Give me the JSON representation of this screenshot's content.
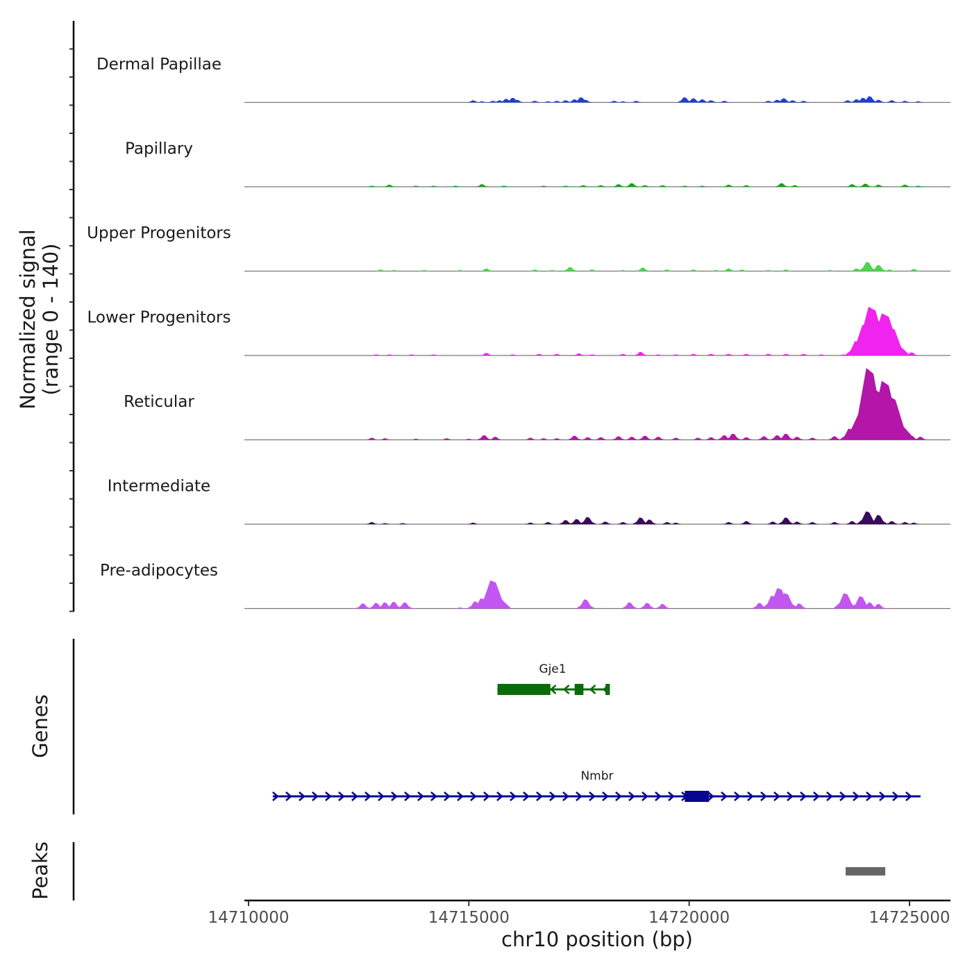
{
  "chart_data": {
    "type": "area",
    "title": "",
    "chromosome": "chr10",
    "xlabel": "chr10 position (bp)",
    "xlim": [
      14710000,
      14726000
    ],
    "x_ticks": [
      {
        "value": 14710000,
        "label": "14710000"
      },
      {
        "value": 14715000,
        "label": "14715000"
      },
      {
        "value": 14720000,
        "label": "14720000"
      },
      {
        "value": 14725000,
        "label": "14725000"
      }
    ],
    "coverage": {
      "ylabel_line1": "Normalized signal",
      "ylabel_line2": "(range 0 - 140)",
      "ylim": [
        0,
        140
      ],
      "tracks": [
        {
          "name": "Dermal Papillae",
          "color": "#1f3fd0",
          "peaks": [
            [
              14715100,
              4
            ],
            [
              14715300,
              2
            ],
            [
              14715550,
              3
            ],
            [
              14715700,
              4
            ],
            [
              14715850,
              7
            ],
            [
              14716000,
              9
            ],
            [
              14716100,
              5
            ],
            [
              14716500,
              3
            ],
            [
              14716800,
              2
            ],
            [
              14717000,
              3
            ],
            [
              14717200,
              4
            ],
            [
              14717400,
              6
            ],
            [
              14717550,
              10
            ],
            [
              14717650,
              5
            ],
            [
              14718300,
              3
            ],
            [
              14718500,
              2
            ],
            [
              14718800,
              3
            ],
            [
              14719900,
              10
            ],
            [
              14720100,
              8
            ],
            [
              14720300,
              6
            ],
            [
              14720500,
              4
            ],
            [
              14720800,
              3
            ],
            [
              14721800,
              3
            ],
            [
              14722000,
              5
            ],
            [
              14722150,
              8
            ],
            [
              14722350,
              4
            ],
            [
              14722600,
              3
            ],
            [
              14723600,
              4
            ],
            [
              14723800,
              6
            ],
            [
              14723950,
              9
            ],
            [
              14724100,
              12
            ],
            [
              14724300,
              5
            ],
            [
              14724600,
              4
            ],
            [
              14724900,
              3
            ],
            [
              14725200,
              2
            ]
          ]
        },
        {
          "name": "Papillary",
          "color": "#17a317",
          "peaks": [
            [
              14712800,
              2
            ],
            [
              14713200,
              4
            ],
            [
              14713800,
              2
            ],
            [
              14714200,
              2
            ],
            [
              14714700,
              2
            ],
            [
              14715300,
              5
            ],
            [
              14715800,
              2
            ],
            [
              14716700,
              2
            ],
            [
              14717200,
              2
            ],
            [
              14717600,
              3
            ],
            [
              14718000,
              3
            ],
            [
              14718400,
              5
            ],
            [
              14718700,
              7
            ],
            [
              14719000,
              3
            ],
            [
              14719400,
              3
            ],
            [
              14719900,
              2
            ],
            [
              14720300,
              2
            ],
            [
              14720900,
              4
            ],
            [
              14721300,
              3
            ],
            [
              14722100,
              7
            ],
            [
              14722400,
              3
            ],
            [
              14723700,
              5
            ],
            [
              14724000,
              6
            ],
            [
              14724300,
              4
            ],
            [
              14724900,
              4
            ],
            [
              14725200,
              2
            ]
          ]
        },
        {
          "name": "Upper Progenitors",
          "color": "#4fd44f",
          "peaks": [
            [
              14713000,
              3
            ],
            [
              14713300,
              2
            ],
            [
              14714000,
              2
            ],
            [
              14714800,
              2
            ],
            [
              14715400,
              5
            ],
            [
              14716500,
              3
            ],
            [
              14716900,
              2
            ],
            [
              14717300,
              8
            ],
            [
              14717800,
              3
            ],
            [
              14718500,
              2
            ],
            [
              14718950,
              7
            ],
            [
              14719500,
              3
            ],
            [
              14720100,
              3
            ],
            [
              14720600,
              2
            ],
            [
              14720900,
              5
            ],
            [
              14721200,
              3
            ],
            [
              14721800,
              2
            ],
            [
              14722200,
              3
            ],
            [
              14723200,
              2
            ],
            [
              14723800,
              5
            ],
            [
              14724050,
              18
            ],
            [
              14724300,
              12
            ],
            [
              14724550,
              3
            ],
            [
              14725100,
              4
            ]
          ]
        },
        {
          "name": "Lower Progenitors",
          "color": "#f024ee",
          "peaks": [
            [
              14712900,
              2
            ],
            [
              14713200,
              2
            ],
            [
              14713700,
              2
            ],
            [
              14714200,
              2
            ],
            [
              14715400,
              5
            ],
            [
              14716000,
              2
            ],
            [
              14716600,
              3
            ],
            [
              14717000,
              3
            ],
            [
              14717500,
              4
            ],
            [
              14717800,
              2
            ],
            [
              14718500,
              3
            ],
            [
              14718900,
              7
            ],
            [
              14719300,
              2
            ],
            [
              14719700,
              2
            ],
            [
              14720100,
              3
            ],
            [
              14720500,
              3
            ],
            [
              14720900,
              3
            ],
            [
              14721300,
              3
            ],
            [
              14721800,
              3
            ],
            [
              14722200,
              3
            ],
            [
              14722600,
              3
            ],
            [
              14723000,
              2
            ],
            [
              14723500,
              2
            ],
            [
              14723800,
              28
            ],
            [
              14724000,
              60
            ],
            [
              14724150,
              95
            ],
            [
              14724300,
              70
            ],
            [
              14724450,
              82
            ],
            [
              14724600,
              55
            ],
            [
              14724800,
              12
            ],
            [
              14725050,
              6
            ]
          ]
        },
        {
          "name": "Reticular",
          "color": "#b316a8",
          "peaks": [
            [
              14712800,
              4
            ],
            [
              14713100,
              3
            ],
            [
              14713800,
              2
            ],
            [
              14714500,
              3
            ],
            [
              14715000,
              2
            ],
            [
              14715350,
              9
            ],
            [
              14715600,
              6
            ],
            [
              14716400,
              4
            ],
            [
              14716700,
              3
            ],
            [
              14717000,
              3
            ],
            [
              14717400,
              8
            ],
            [
              14717700,
              5
            ],
            [
              14718000,
              5
            ],
            [
              14718400,
              7
            ],
            [
              14718700,
              6
            ],
            [
              14719000,
              8
            ],
            [
              14719300,
              6
            ],
            [
              14719700,
              4
            ],
            [
              14720200,
              4
            ],
            [
              14720500,
              5
            ],
            [
              14720800,
              9
            ],
            [
              14721000,
              12
            ],
            [
              14721300,
              5
            ],
            [
              14721700,
              7
            ],
            [
              14722000,
              9
            ],
            [
              14722200,
              12
            ],
            [
              14722450,
              6
            ],
            [
              14722800,
              4
            ],
            [
              14723300,
              7
            ],
            [
              14723650,
              22
            ],
            [
              14723900,
              30
            ],
            [
              14724100,
              140
            ],
            [
              14724250,
              100
            ],
            [
              14724450,
              115
            ],
            [
              14724600,
              85
            ],
            [
              14724800,
              28
            ],
            [
              14725050,
              8
            ],
            [
              14725250,
              6
            ]
          ]
        },
        {
          "name": "Intermediate",
          "color": "#3a0a5c",
          "peaks": [
            [
              14712800,
              4
            ],
            [
              14713100,
              2
            ],
            [
              14713500,
              2
            ],
            [
              14715100,
              3
            ],
            [
              14716400,
              3
            ],
            [
              14716800,
              4
            ],
            [
              14717200,
              8
            ],
            [
              14717450,
              10
            ],
            [
              14717700,
              14
            ],
            [
              14718100,
              5
            ],
            [
              14718500,
              4
            ],
            [
              14718900,
              13
            ],
            [
              14719100,
              9
            ],
            [
              14719500,
              4
            ],
            [
              14719700,
              3
            ],
            [
              14720900,
              4
            ],
            [
              14721300,
              6
            ],
            [
              14721900,
              5
            ],
            [
              14722200,
              13
            ],
            [
              14722450,
              5
            ],
            [
              14722800,
              4
            ],
            [
              14723300,
              4
            ],
            [
              14723700,
              6
            ],
            [
              14724050,
              25
            ],
            [
              14724300,
              18
            ],
            [
              14724600,
              6
            ],
            [
              14724900,
              4
            ],
            [
              14725100,
              3
            ]
          ]
        },
        {
          "name": "Pre-adipocytes",
          "color": "#c256f0",
          "peaks": [
            [
              14712600,
              10
            ],
            [
              14712900,
              11
            ],
            [
              14713100,
              12
            ],
            [
              14713300,
              13
            ],
            [
              14713550,
              12
            ],
            [
              14714800,
              2
            ],
            [
              14715150,
              14
            ],
            [
              14715300,
              20
            ],
            [
              14715450,
              30
            ],
            [
              14715550,
              55
            ],
            [
              14715650,
              18
            ],
            [
              14717650,
              18
            ],
            [
              14718650,
              12
            ],
            [
              14719050,
              11
            ],
            [
              14719400,
              9
            ],
            [
              14721600,
              11
            ],
            [
              14721900,
              25
            ],
            [
              14722050,
              40
            ],
            [
              14722200,
              30
            ],
            [
              14722500,
              10
            ],
            [
              14723550,
              30
            ],
            [
              14723900,
              24
            ],
            [
              14724100,
              12
            ],
            [
              14724300,
              9
            ]
          ]
        }
      ]
    },
    "genes": {
      "ylabel": "Genes",
      "items": [
        {
          "name": "Gje1",
          "color": "#0b6b0b",
          "strand": "-",
          "start": 14715650,
          "end": 14718200,
          "exons": [
            [
              14715650,
              14716850
            ],
            [
              14717400,
              14717600
            ],
            [
              14718100,
              14718200
            ]
          ]
        },
        {
          "name": "Nmbr",
          "color": "#050590",
          "strand": "+",
          "start": 14710550,
          "end": 14725250,
          "exons": [
            [
              14719900,
              14720450
            ]
          ]
        }
      ]
    },
    "peaks_track": {
      "ylabel": "Peaks",
      "color": "#666666",
      "regions": [
        [
          14723550,
          14724450
        ]
      ]
    }
  }
}
